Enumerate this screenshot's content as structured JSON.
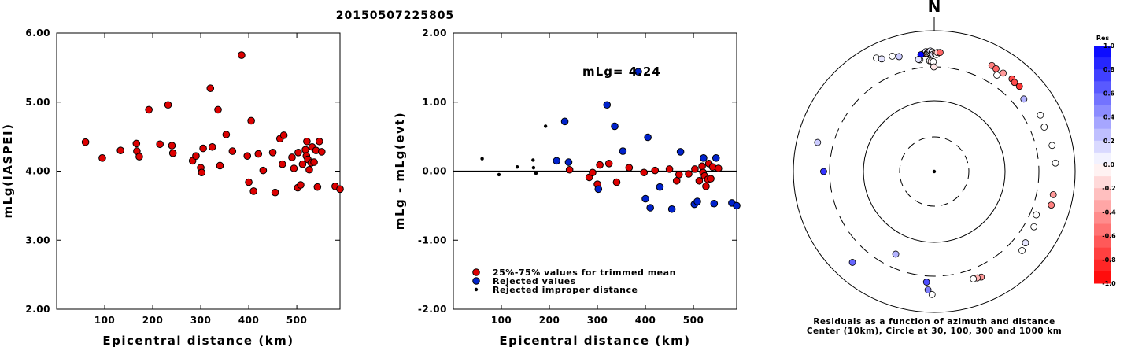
{
  "title": "20150507225805",
  "colors": {
    "red": "#dd0000",
    "blue": "#0022cc",
    "black": "#000000"
  },
  "chart_data": [
    {
      "type": "scatter",
      "xlabel": "Epicentral distance (km)",
      "ylabel": "mLg(IASPEI)",
      "xlim": [
        0,
        590
      ],
      "ylim": [
        2.0,
        6.0
      ],
      "xticks": [
        "100",
        "200",
        "300",
        "400",
        "500"
      ],
      "xtick_values": [
        100,
        200,
        300,
        400,
        500
      ],
      "yticks": [
        "2.00",
        "3.00",
        "4.00",
        "5.00",
        "6.00"
      ],
      "ytick_values": [
        2,
        3,
        4,
        5,
        6
      ],
      "points": [
        [
          60,
          4.42
        ],
        [
          95,
          4.19
        ],
        [
          133,
          4.3
        ],
        [
          166,
          4.4
        ],
        [
          167,
          4.29
        ],
        [
          172,
          4.21
        ],
        [
          192,
          4.89
        ],
        [
          215,
          4.39
        ],
        [
          232,
          4.96
        ],
        [
          240,
          4.37
        ],
        [
          242,
          4.26
        ],
        [
          283,
          4.15
        ],
        [
          290,
          4.22
        ],
        [
          300,
          4.05
        ],
        [
          302,
          3.98
        ],
        [
          305,
          4.33
        ],
        [
          320,
          5.2
        ],
        [
          324,
          4.35
        ],
        [
          336,
          4.89
        ],
        [
          340,
          4.08
        ],
        [
          353,
          4.53
        ],
        [
          366,
          4.29
        ],
        [
          385,
          5.68
        ],
        [
          397,
          4.22
        ],
        [
          400,
          3.84
        ],
        [
          405,
          4.73
        ],
        [
          410,
          3.71
        ],
        [
          420,
          4.25
        ],
        [
          430,
          4.01
        ],
        [
          450,
          4.27
        ],
        [
          455,
          3.69
        ],
        [
          465,
          4.47
        ],
        [
          470,
          4.1
        ],
        [
          473,
          4.52
        ],
        [
          490,
          4.2
        ],
        [
          494,
          4.04
        ],
        [
          502,
          3.76
        ],
        [
          503,
          4.27
        ],
        [
          508,
          3.8
        ],
        [
          512,
          4.1
        ],
        [
          518,
          4.31
        ],
        [
          520,
          4.22
        ],
        [
          521,
          4.43
        ],
        [
          523,
          4.17
        ],
        [
          526,
          4.02
        ],
        [
          530,
          4.12
        ],
        [
          532,
          4.35
        ],
        [
          536,
          4.13
        ],
        [
          540,
          4.3
        ],
        [
          543,
          3.77
        ],
        [
          547,
          4.43
        ],
        [
          552,
          4.28
        ],
        [
          580,
          3.78
        ],
        [
          590,
          3.74
        ]
      ]
    },
    {
      "type": "scatter",
      "xlabel": "Epicentral distance (km)",
      "ylabel": "mLg - mLg(evt)",
      "xlim": [
        0,
        590
      ],
      "ylim": [
        -2.0,
        2.0
      ],
      "xticks": [
        "100",
        "200",
        "300",
        "400",
        "500"
      ],
      "xtick_values": [
        100,
        200,
        300,
        400,
        500
      ],
      "yticks": [
        "-2.00",
        "-1.00",
        "0.00",
        "1.00",
        "2.00"
      ],
      "ytick_values": [
        -2,
        -1,
        0,
        1,
        2
      ],
      "annotation": "mLg= 4.24",
      "reference_line": 0.0,
      "legend": [
        {
          "label": "25%-75% values for trimmed mean",
          "color": "#dd0000",
          "size": "large"
        },
        {
          "label": "Rejected values",
          "color": "#0022cc",
          "size": "large"
        },
        {
          "label": "Rejected improper distance",
          "color": "#000000",
          "size": "small"
        }
      ],
      "series": [
        {
          "name": "25%-75% values for trimmed mean",
          "color": "#dd0000",
          "points": [
            [
              242,
              0.02
            ],
            [
              283,
              -0.09
            ],
            [
              290,
              -0.02
            ],
            [
              300,
              -0.19
            ],
            [
              305,
              0.09
            ],
            [
              324,
              0.11
            ],
            [
              340,
              -0.16
            ],
            [
              366,
              0.05
            ],
            [
              397,
              -0.02
            ],
            [
              420,
              0.01
            ],
            [
              450,
              0.03
            ],
            [
              465,
              -0.14
            ],
            [
              470,
              -0.05
            ],
            [
              490,
              -0.04
            ],
            [
              503,
              0.03
            ],
            [
              512,
              -0.14
            ],
            [
              518,
              0.07
            ],
            [
              520,
              -0.02
            ],
            [
              523,
              -0.07
            ],
            [
              526,
              -0.22
            ],
            [
              530,
              -0.12
            ],
            [
              532,
              0.11
            ],
            [
              536,
              -0.11
            ],
            [
              540,
              0.06
            ],
            [
              552,
              0.04
            ]
          ]
        },
        {
          "name": "Rejected values",
          "color": "#0022cc",
          "points": [
            [
              215,
              0.15
            ],
            [
              232,
              0.72
            ],
            [
              240,
              0.13
            ],
            [
              302,
              -0.26
            ],
            [
              320,
              0.96
            ],
            [
              336,
              0.65
            ],
            [
              353,
              0.29
            ],
            [
              385,
              1.44
            ],
            [
              400,
              -0.4
            ],
            [
              405,
              0.49
            ],
            [
              410,
              -0.53
            ],
            [
              430,
              -0.23
            ],
            [
              455,
              -0.55
            ],
            [
              473,
              0.28
            ],
            [
              502,
              -0.48
            ],
            [
              508,
              -0.44
            ],
            [
              521,
              0.19
            ],
            [
              543,
              -0.47
            ],
            [
              547,
              0.19
            ],
            [
              580,
              -0.46
            ],
            [
              590,
              -0.5
            ]
          ]
        },
        {
          "name": "Rejected improper distance",
          "color": "#000000",
          "points": [
            [
              60,
              0.18
            ],
            [
              95,
              -0.05
            ],
            [
              133,
              0.06
            ],
            [
              166,
              0.16
            ],
            [
              167,
              0.05
            ],
            [
              172,
              -0.03
            ],
            [
              192,
              0.65
            ]
          ]
        }
      ]
    },
    {
      "type": "polar-scatter",
      "north_label": "N",
      "caption_line1": "Residuals as a function of azimuth and distance",
      "caption_line2": "Center (10km), Circle at 30, 100, 300 and 1000 km",
      "rings_km": [
        30,
        100,
        300,
        1000
      ],
      "colorbar": {
        "title": "Res",
        "labels": [
          "1.0",
          "0.8",
          "0.6",
          "0.4",
          "0.2",
          "0.0",
          "-0.2",
          "-0.4",
          "-0.6",
          "-0.8",
          "-1.0"
        ],
        "values": [
          1.0,
          0.8,
          0.6,
          0.4,
          0.2,
          0.0,
          -0.2,
          -0.4,
          -0.6,
          -0.8,
          -1.0
        ]
      },
      "stations": [
        [
          -5.0,
          570,
          0.0
        ],
        [
          -4.5,
          585,
          -0.3
        ],
        [
          -4.0,
          600,
          0.1
        ],
        [
          -3.6,
          560,
          -0.5
        ],
        [
          -3.2,
          575,
          0.0
        ],
        [
          -2.8,
          595,
          -0.4
        ],
        [
          -2.2,
          580,
          0.0
        ],
        [
          -1.9,
          610,
          0.1
        ],
        [
          -1.2,
          570,
          -0.2
        ],
        [
          -0.9,
          590,
          0.0
        ],
        [
          -0.6,
          545,
          0.1
        ],
        [
          0.4,
          560,
          -0.3
        ],
        [
          1.1,
          540,
          0.0
        ],
        [
          -6.5,
          550,
          1.0
        ],
        [
          -7.3,
          455,
          0.0
        ],
        [
          -8.0,
          465,
          0.1
        ],
        [
          -2.4,
          420,
          0.0
        ],
        [
          -1.6,
          410,
          -0.1
        ],
        [
          -0.5,
          400,
          0.0
        ],
        [
          -0.2,
          300,
          -0.1
        ],
        [
          1.5,
          580,
          -0.2
        ],
        [
          2.8,
          582,
          -0.6
        ],
        [
          -17.0,
          600,
          0.2
        ],
        [
          -20.0,
          650,
          0.0
        ],
        [
          -27.0,
          740,
          0.0
        ],
        [
          -25.0,
          680,
          0.1
        ],
        [
          -76.0,
          600,
          0.2
        ],
        [
          -90.0,
          415,
          0.8
        ],
        [
          -138.0,
          640,
          0.6
        ],
        [
          -155.0,
          220,
          0.3
        ],
        [
          -176.0,
          420,
          0.7
        ],
        [
          -177.0,
          570,
          0.5
        ],
        [
          -179.0,
          655,
          0.0
        ],
        [
          28.5,
          610,
          -0.5
        ],
        [
          31.0,
          595,
          -0.6
        ],
        [
          35.0,
          600,
          -0.4
        ],
        [
          40.0,
          615,
          -0.7
        ],
        [
          42.0,
          595,
          -0.7
        ],
        [
          45.0,
          605,
          -0.8
        ],
        [
          33.0,
          500,
          0.0
        ],
        [
          51.0,
          505,
          0.3
        ],
        [
          62.0,
          600,
          0.0
        ],
        [
          68.0,
          570,
          0.0
        ],
        [
          77.5,
          610,
          0.0
        ],
        [
          86.0,
          625,
          0.0
        ],
        [
          101.0,
          620,
          -0.4
        ],
        [
          106.0,
          630,
          -0.5
        ],
        [
          113.0,
          420,
          0.0
        ],
        [
          119.0,
          480,
          0.0
        ],
        [
          128.0,
          515,
          0.1
        ],
        [
          132.0,
          560,
          0.0
        ],
        [
          156.0,
          510,
          -0.4
        ],
        [
          158.0,
          495,
          -0.3
        ],
        [
          160.0,
          485,
          0.0
        ]
      ]
    }
  ]
}
